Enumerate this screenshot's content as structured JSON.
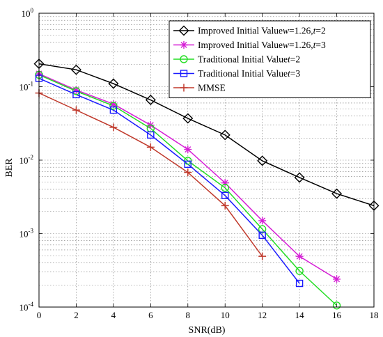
{
  "chart_data": {
    "type": "line",
    "title": "",
    "xlabel": "SNR(dB)",
    "ylabel": "BER",
    "xlim": [
      0,
      18
    ],
    "ylim": [
      0.0001,
      1
    ],
    "yscale": "log",
    "grid": true,
    "legend_position": "top-right",
    "x_ticks": [
      0,
      2,
      4,
      6,
      8,
      10,
      12,
      14,
      16,
      18
    ],
    "y_tick_exponents": [
      0,
      -1,
      -2,
      -3,
      -4
    ],
    "y_tick_base": "10",
    "series": [
      {
        "name": "Improved Initial Value",
        "name_params": [
          {
            "sym": "w",
            "val": "=1.26,"
          },
          {
            "sym": "t",
            "val": "=2"
          }
        ],
        "color": "#000000",
        "marker": "diamond",
        "x": [
          0,
          2,
          4,
          6,
          8,
          10,
          12,
          14,
          16,
          18
        ],
        "y": [
          0.205,
          0.17,
          0.11,
          0.066,
          0.037,
          0.022,
          0.0098,
          0.0058,
          0.0035,
          0.0024
        ]
      },
      {
        "name": "Improved Initial Value",
        "name_params": [
          {
            "sym": "w",
            "val": "=1.26,"
          },
          {
            "sym": "t",
            "val": "=3"
          }
        ],
        "color": "#d61fd6",
        "marker": "asterisk",
        "x": [
          0,
          2,
          4,
          6,
          8,
          10,
          12,
          14,
          16
        ],
        "y": [
          0.15,
          0.09,
          0.058,
          0.03,
          0.014,
          0.0049,
          0.0015,
          0.00049,
          0.00024
        ]
      },
      {
        "name": "Traditional Initial Value",
        "name_params": [
          {
            "sym": "t",
            "val": "=2"
          }
        ],
        "color": "#22dd22",
        "marker": "circle",
        "x": [
          0,
          2,
          4,
          6,
          8,
          10,
          12,
          14,
          16
        ],
        "y": [
          0.145,
          0.087,
          0.055,
          0.027,
          0.0098,
          0.0042,
          0.00115,
          0.00031,
          0.000105
        ]
      },
      {
        "name": "Traditional Initial Value",
        "name_params": [
          {
            "sym": "t",
            "val": "=3"
          }
        ],
        "color": "#1a1aff",
        "marker": "square",
        "x": [
          0,
          2,
          4,
          6,
          8,
          10,
          12,
          14
        ],
        "y": [
          0.13,
          0.078,
          0.048,
          0.022,
          0.0088,
          0.0033,
          0.00095,
          0.00021
        ]
      },
      {
        "name": "MMSE",
        "name_params": [],
        "color": "#c0392b",
        "marker": "plus",
        "x": [
          0,
          2,
          4,
          6,
          8,
          10,
          12
        ],
        "y": [
          0.082,
          0.048,
          0.028,
          0.015,
          0.0068,
          0.0024,
          0.00049
        ]
      }
    ]
  }
}
